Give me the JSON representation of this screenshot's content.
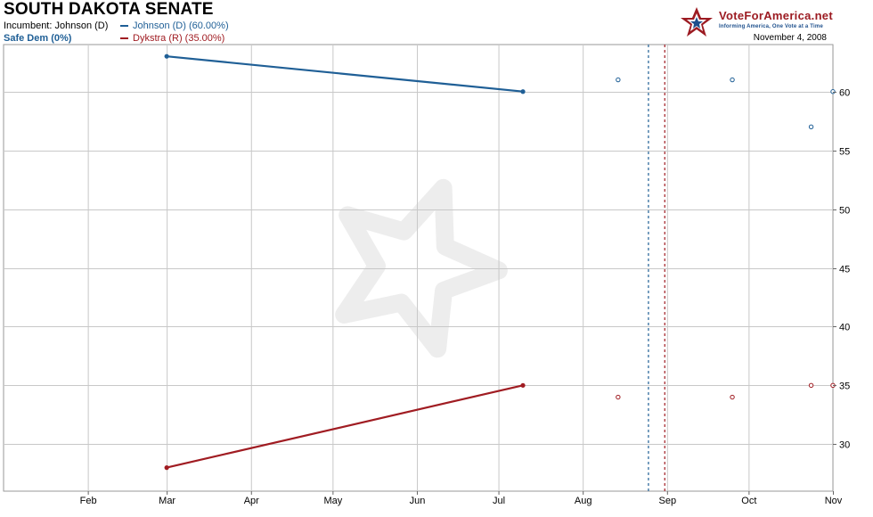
{
  "header": {
    "title": "SOUTH DAKOTA SENATE",
    "incumbent": "Incumbent: Johnson (D)",
    "rating": "Safe Dem (0%)",
    "date": "November 4, 2008"
  },
  "logo": {
    "name": "VoteForAmerica.net",
    "tagline": "Informing America, One Vote at a Time",
    "icon": "star-logo-icon"
  },
  "colors": {
    "dem": "#1f5f96",
    "rep": "#a01c22",
    "grid": "#c8c8c8",
    "watermark": "#ededed"
  },
  "chart_data": {
    "type": "line",
    "title": "SOUTH DAKOTA SENATE",
    "xlabel": "",
    "ylabel": "",
    "x_ticks": [
      "Feb",
      "Mar",
      "Apr",
      "May",
      "Jun",
      "Jul",
      "Aug",
      "Sep",
      "Oct",
      "Nov"
    ],
    "x_range": [
      "2008-01-01",
      "2008-11-01"
    ],
    "ylim": [
      26,
      64
    ],
    "y_ticks": [
      30,
      35,
      40,
      45,
      50,
      55,
      60
    ],
    "y_axis_side": "right",
    "grid": true,
    "series": [
      {
        "name": "Johnson (D) (60.00%)",
        "color": "#1f5f96",
        "line": [
          {
            "x": "2008-03-01",
            "y": 63
          },
          {
            "x": "2008-07-10",
            "y": 60
          }
        ],
        "points": [
          {
            "x": "2008-08-14",
            "y": 61
          },
          {
            "x": "2008-09-25",
            "y": 61
          },
          {
            "x": "2008-10-24",
            "y": 57
          },
          {
            "x": "2008-11-01",
            "y": 60
          }
        ]
      },
      {
        "name": "Dykstra (R) (35.00%)",
        "color": "#a01c22",
        "line": [
          {
            "x": "2008-03-01",
            "y": 28
          },
          {
            "x": "2008-07-10",
            "y": 35
          }
        ],
        "points": [
          {
            "x": "2008-08-14",
            "y": 34
          },
          {
            "x": "2008-09-25",
            "y": 34
          },
          {
            "x": "2008-10-24",
            "y": 35
          },
          {
            "x": "2008-11-01",
            "y": 35
          }
        ]
      }
    ],
    "vlines": [
      {
        "x": "2008-08-25",
        "color": "#1f5f96",
        "style": "dotted"
      },
      {
        "x": "2008-08-31",
        "color": "#a01c22",
        "style": "dotted"
      }
    ]
  }
}
